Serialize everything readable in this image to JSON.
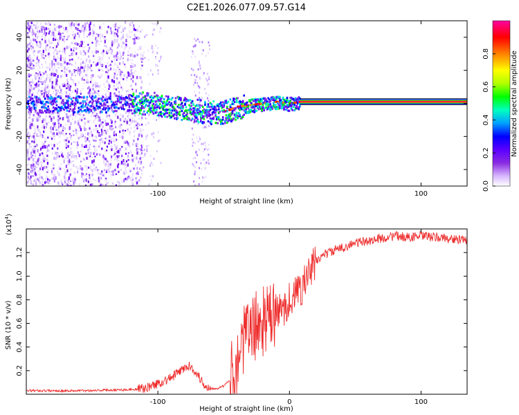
{
  "title": "C2E1.2026.077.09.57.G14",
  "chart_data": [
    {
      "type": "heatmap",
      "name": "spectrogram",
      "xlabel": "Height of straight line (km)",
      "ylabel": "Frequency (Hz)",
      "xlim": [
        -200,
        135
      ],
      "ylim": [
        -50,
        50
      ],
      "xticks": [
        -100,
        0,
        100
      ],
      "xtick_labels": [
        "-100",
        "",
        "100"
      ],
      "yticks": [
        40,
        20,
        0,
        -20,
        -40
      ],
      "ytick_labels": [
        "40",
        "20",
        "0",
        "-20",
        "-40"
      ],
      "colorbar": {
        "label": "Normalized spectral amplitude",
        "range": [
          0,
          1
        ],
        "ticks": [
          0.0,
          0.2,
          0.4,
          0.6,
          0.8
        ],
        "tick_labels": [
          "0.0",
          "0.2",
          "0.4",
          "0.6",
          "0.8"
        ],
        "colormap": "rainbow",
        "colors": [
          "#ffffff",
          "#d8b8ff",
          "#8a2be2",
          "#5a00ff",
          "#0000ff",
          "#00a0ff",
          "#00ffc0",
          "#00ff00",
          "#b0ff00",
          "#ffff00",
          "#ff8000",
          "#ff0000",
          "#ff00a0"
        ]
      },
      "ridge": {
        "x": [
          -200,
          -180,
          -160,
          -140,
          -120,
          -100,
          -90,
          -80,
          -70,
          -60,
          -50,
          -40,
          -30,
          -20,
          -10,
          0,
          8,
          135
        ],
        "y": [
          0,
          0,
          0,
          0,
          1,
          0,
          -2,
          -3,
          -4,
          -5,
          -5,
          -2,
          -1,
          0,
          1,
          0,
          1,
          1
        ]
      }
    },
    {
      "type": "line",
      "name": "snr",
      "xlabel": "Height of straight line (km)",
      "ylabel": "SNR (10 * v/v)",
      "scale_label": "(x10",
      "scale_exponent": "4",
      "xlim": [
        -200,
        135
      ],
      "ylim": [
        0,
        1.4
      ],
      "xticks": [
        -100,
        0,
        100
      ],
      "xtick_labels": [
        "-100",
        "0",
        "100"
      ],
      "yticks": [
        0.2,
        0.4,
        0.6,
        0.8,
        1.0,
        1.2
      ],
      "ytick_labels": [
        "0.2",
        "0.4",
        "0.6",
        "0.8",
        "1.0",
        "1.2"
      ],
      "color": "#ee2b2b",
      "series": [
        {
          "name": "SNR",
          "x": [
            -200,
            -180,
            -160,
            -140,
            -120,
            -110,
            -100,
            -90,
            -85,
            -80,
            -75,
            -70,
            -65,
            -60,
            -55,
            -50,
            -45,
            -40,
            -35,
            -30,
            -25,
            -20,
            -15,
            -10,
            -5,
            0,
            5,
            10,
            15,
            20,
            25,
            30,
            40,
            50,
            60,
            70,
            80,
            90,
            100,
            110,
            120,
            135
          ],
          "y": [
            0.03,
            0.03,
            0.03,
            0.035,
            0.04,
            0.05,
            0.09,
            0.14,
            0.18,
            0.22,
            0.24,
            0.17,
            0.08,
            0.05,
            0.05,
            0.07,
            0.12,
            0.28,
            0.45,
            0.55,
            0.58,
            0.62,
            0.64,
            0.68,
            0.72,
            0.8,
            0.85,
            0.92,
            1.02,
            1.12,
            1.18,
            1.2,
            1.24,
            1.28,
            1.3,
            1.32,
            1.34,
            1.33,
            1.34,
            1.33,
            1.32,
            1.3
          ]
        }
      ]
    }
  ]
}
